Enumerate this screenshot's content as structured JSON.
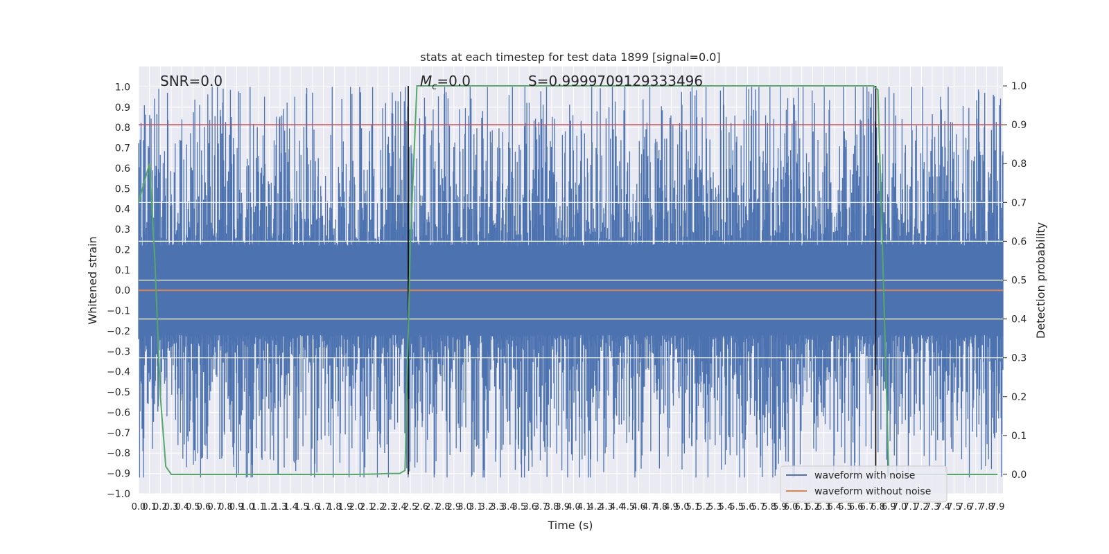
{
  "chart_data": {
    "type": "line",
    "title": "stats at each timestep for test data 1899 [signal=0.0]",
    "xlabel": "Time (s)",
    "ylabel": "Whitened strain",
    "y2label": "Detection probability",
    "xlim": [
      0.0,
      7.95
    ],
    "ylim": [
      -1.0,
      1.1
    ],
    "y2lim": [
      -0.05,
      1.05
    ],
    "xticks": [
      0.0,
      0.1,
      0.2,
      0.3,
      0.4,
      0.5,
      0.6,
      0.7,
      0.8,
      0.9,
      1.0,
      1.1,
      1.2,
      1.3,
      1.4,
      1.5,
      1.6,
      1.7,
      1.8,
      1.9,
      2.0,
      2.1,
      2.2,
      2.3,
      2.4,
      2.5,
      2.6,
      2.7,
      2.8,
      2.9,
      3.0,
      3.1,
      3.2,
      3.3,
      3.4,
      3.5,
      3.6,
      3.7,
      3.8,
      3.9,
      4.0,
      4.1,
      4.2,
      4.3,
      4.4,
      4.5,
      4.6,
      4.7,
      4.8,
      4.9,
      5.0,
      5.1,
      5.2,
      5.3,
      5.4,
      5.5,
      5.6,
      5.7,
      5.8,
      5.9,
      6.0,
      6.1,
      6.2,
      6.3,
      6.4,
      6.5,
      6.6,
      6.7,
      6.8,
      6.9,
      7.0,
      7.1,
      7.2,
      7.3,
      7.4,
      7.5,
      7.6,
      7.7,
      7.8,
      7.9
    ],
    "yticks": [
      -1.0,
      -0.9,
      -0.8,
      -0.7,
      -0.6,
      -0.5,
      -0.4,
      -0.3,
      -0.2,
      -0.1,
      0.0,
      0.1,
      0.2,
      0.3,
      0.4,
      0.5,
      0.6,
      0.7,
      0.8,
      0.9,
      1.0
    ],
    "y2ticks": [
      0.0,
      0.1,
      0.2,
      0.3,
      0.4,
      0.5,
      0.6,
      0.7,
      0.8,
      0.9,
      1.0
    ],
    "grid": true,
    "legend_placement": "lower-right",
    "annotations": {
      "snr": "SNR=0.0",
      "mc_symbol": "M",
      "mc_sub": "c",
      "mc_value": "=0.0",
      "s": "S=0.9999709129333496"
    },
    "series": [
      {
        "name": "waveform with noise",
        "color": "#4c72b0",
        "note_style": "dense noise, roughly symmetric about 0",
        "envelope_abs_max": 1.0
      },
      {
        "name": "waveform without noise",
        "color": "#dd8452",
        "y": 0.0
      }
    ],
    "threshold": {
      "y2": 0.9,
      "color": "#c44e52"
    },
    "detection_probability": {
      "color": "#55a868",
      "x": [
        0.0,
        0.05,
        0.1,
        0.15,
        0.2,
        0.25,
        0.3,
        0.5,
        1.0,
        1.5,
        2.0,
        2.2,
        2.3,
        2.4,
        2.45,
        2.5,
        2.56,
        2.6,
        3.0,
        4.0,
        5.0,
        6.0,
        6.7,
        6.76,
        6.8,
        6.85,
        6.9,
        7.0,
        7.5,
        7.9
      ],
      "y": [
        0.7,
        0.75,
        0.8,
        0.55,
        0.2,
        0.02,
        0.0,
        0.0,
        0.0,
        0.0,
        0.0,
        0.001,
        0.002,
        0.002,
        0.01,
        0.6,
        1.0,
        1.0,
        1.0,
        1.0,
        1.0,
        1.0,
        1.0,
        1.0,
        0.99,
        0.5,
        0.0,
        0.0,
        0.0,
        0.0
      ]
    },
    "vlines": [
      2.48,
      6.78
    ],
    "vline_color": "#000000"
  }
}
